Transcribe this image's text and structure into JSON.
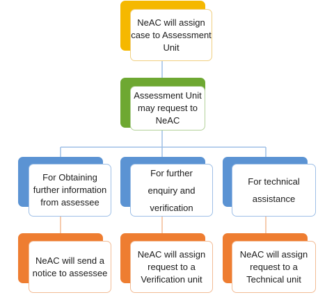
{
  "colors": {
    "level1": "#f5b800",
    "level2": "#6ea832",
    "level3": "#5b93d3",
    "level4": "#ee7d31",
    "connector": "#9ebfe6"
  },
  "nodes": {
    "assign_case": "NeAC will assign case to Assessment Unit",
    "request": "Assessment Unit may request to NeAC",
    "obtain_info": "For Obtaining further information from assessee",
    "enquiry": "For further enquiry and verification",
    "technical": "For technical assistance",
    "send_notice": "NeAC will send a notice to assessee",
    "verification_unit": "NeAC will assign request to a Verification unit",
    "technical_unit": "NeAC will assign request to a Technical unit"
  }
}
